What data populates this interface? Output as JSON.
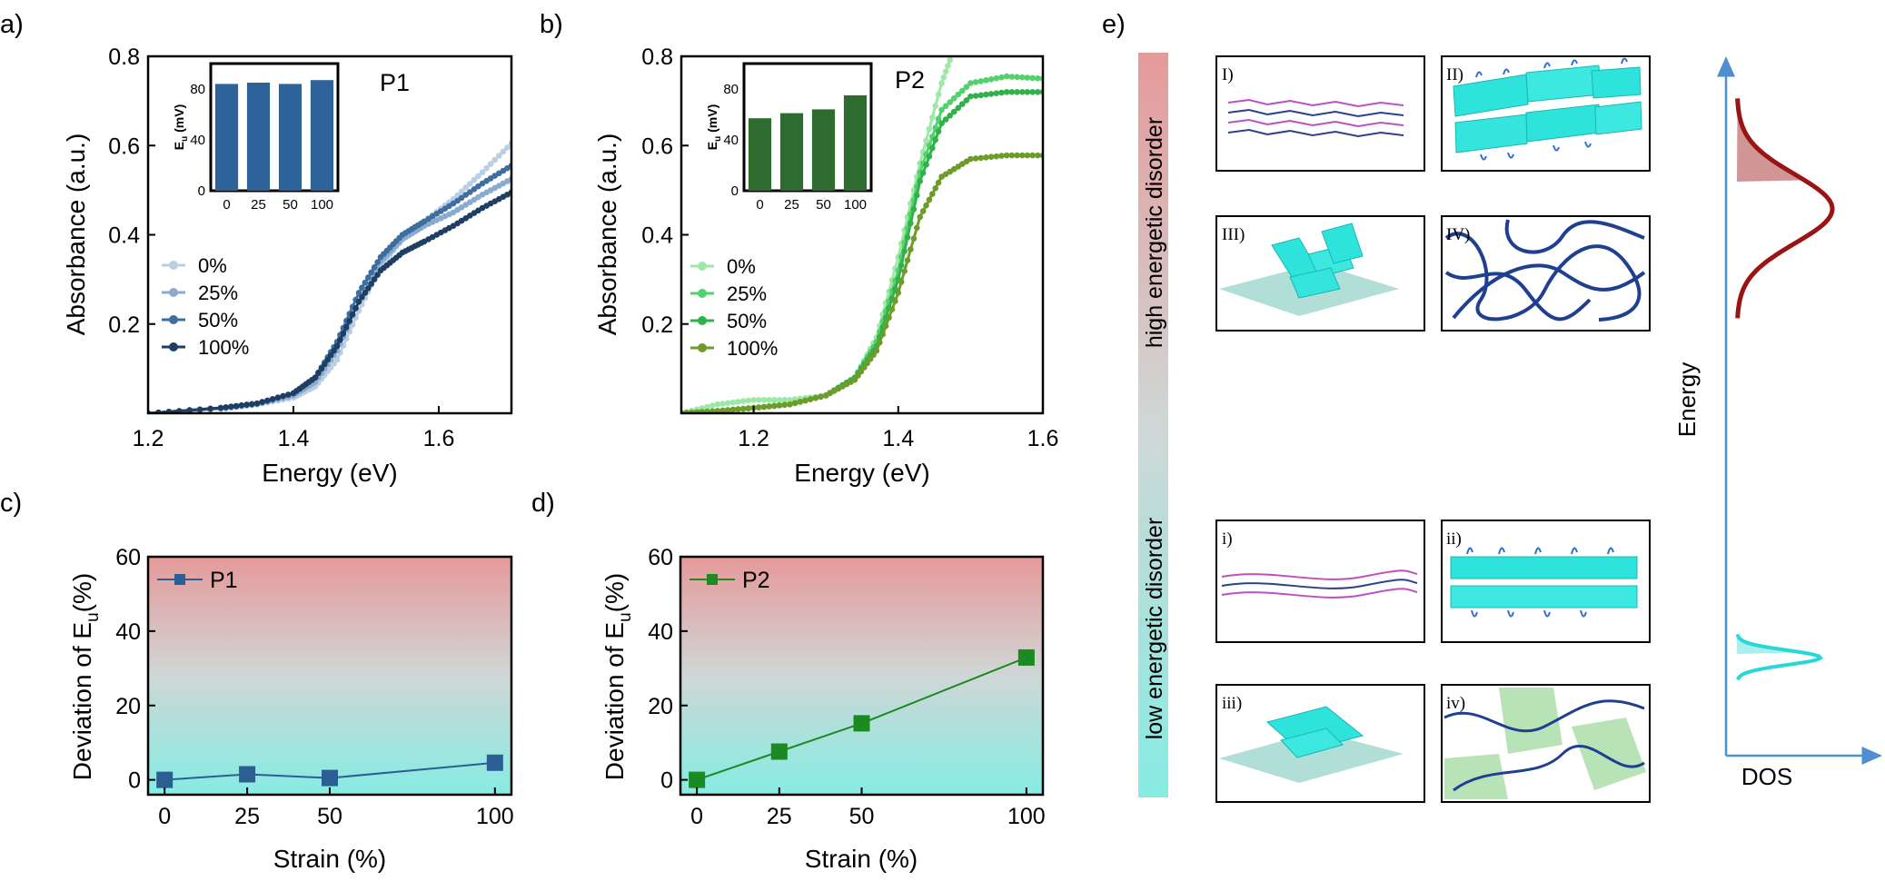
{
  "chart_data": [
    {
      "panel": "a)",
      "type": "line",
      "title": "P1",
      "xlabel": "Energy (eV)",
      "ylabel": "Absorbance (a.u.)",
      "xlim": [
        1.2,
        1.7
      ],
      "ylim": [
        0,
        0.8
      ],
      "xticks": [
        "1.2",
        "1.4",
        "1.6"
      ],
      "yticks": [
        "0.2",
        "0.4",
        "0.6",
        "0.8"
      ],
      "legend": {
        "position": "middle-left"
      },
      "series": [
        {
          "name": "0%",
          "color": "#b8cfe6",
          "x": [
            1.2,
            1.3,
            1.35,
            1.4,
            1.43,
            1.46,
            1.49,
            1.52,
            1.55,
            1.58,
            1.62,
            1.66,
            1.7
          ],
          "y": [
            0.0,
            0.01,
            0.02,
            0.035,
            0.06,
            0.12,
            0.23,
            0.33,
            0.39,
            0.43,
            0.48,
            0.54,
            0.605
          ]
        },
        {
          "name": "25%",
          "color": "#8aabcf",
          "x": [
            1.2,
            1.3,
            1.35,
            1.4,
            1.43,
            1.46,
            1.49,
            1.52,
            1.55,
            1.58,
            1.62,
            1.66,
            1.7
          ],
          "y": [
            0.0,
            0.01,
            0.02,
            0.04,
            0.07,
            0.14,
            0.25,
            0.34,
            0.39,
            0.42,
            0.45,
            0.49,
            0.525
          ]
        },
        {
          "name": "50%",
          "color": "#3d6e9f",
          "x": [
            1.2,
            1.3,
            1.35,
            1.4,
            1.43,
            1.46,
            1.49,
            1.52,
            1.55,
            1.58,
            1.62,
            1.66,
            1.7
          ],
          "y": [
            0.0,
            0.012,
            0.022,
            0.045,
            0.08,
            0.16,
            0.27,
            0.35,
            0.4,
            0.43,
            0.47,
            0.515,
            0.555
          ]
        },
        {
          "name": "100%",
          "color": "#1e3f63",
          "x": [
            1.2,
            1.3,
            1.35,
            1.4,
            1.43,
            1.46,
            1.49,
            1.52,
            1.55,
            1.58,
            1.62,
            1.66,
            1.7
          ],
          "y": [
            0.0,
            0.012,
            0.022,
            0.045,
            0.08,
            0.15,
            0.25,
            0.32,
            0.36,
            0.385,
            0.42,
            0.46,
            0.495
          ]
        }
      ],
      "inset": {
        "type": "bar",
        "ylabel": "E_u (mV)",
        "categories": [
          "0",
          "25",
          "50",
          "100"
        ],
        "values": [
          84,
          85,
          84,
          87
        ],
        "ylim": [
          0,
          100
        ],
        "yticks": [
          "0",
          "40",
          "80"
        ],
        "color": "#2e6399"
      }
    },
    {
      "panel": "b)",
      "type": "line",
      "title": "P2",
      "xlabel": "Energy (eV)",
      "ylabel": "Absorbance (a.u.)",
      "xlim": [
        1.1,
        1.6
      ],
      "ylim": [
        0,
        0.8
      ],
      "xticks": [
        "1.2",
        "1.4",
        "1.6"
      ],
      "yticks": [
        "0.2",
        "0.4",
        "0.6",
        "0.8"
      ],
      "legend": {
        "position": "middle-left"
      },
      "series": [
        {
          "name": "0%",
          "color": "#9ee8a7",
          "x": [
            1.1,
            1.15,
            1.2,
            1.25,
            1.3,
            1.34,
            1.37,
            1.4,
            1.43,
            1.46,
            1.48
          ],
          "y": [
            0.0,
            0.02,
            0.03,
            0.03,
            0.04,
            0.08,
            0.17,
            0.35,
            0.56,
            0.74,
            0.83
          ]
        },
        {
          "name": "25%",
          "color": "#55d16c",
          "x": [
            1.1,
            1.15,
            1.2,
            1.25,
            1.3,
            1.34,
            1.37,
            1.4,
            1.43,
            1.46,
            1.5,
            1.55,
            1.6
          ],
          "y": [
            0.0,
            0.005,
            0.012,
            0.02,
            0.04,
            0.08,
            0.16,
            0.32,
            0.54,
            0.68,
            0.74,
            0.755,
            0.75
          ]
        },
        {
          "name": "50%",
          "color": "#2fb24a",
          "x": [
            1.1,
            1.15,
            1.2,
            1.25,
            1.3,
            1.34,
            1.37,
            1.4,
            1.43,
            1.46,
            1.5,
            1.55,
            1.6
          ],
          "y": [
            0.0,
            0.005,
            0.012,
            0.02,
            0.04,
            0.08,
            0.15,
            0.3,
            0.52,
            0.65,
            0.71,
            0.72,
            0.72
          ]
        },
        {
          "name": "100%",
          "color": "#6e9c2a",
          "x": [
            1.1,
            1.15,
            1.2,
            1.25,
            1.3,
            1.34,
            1.37,
            1.4,
            1.43,
            1.46,
            1.5,
            1.55,
            1.6
          ],
          "y": [
            0.0,
            0.005,
            0.012,
            0.02,
            0.04,
            0.075,
            0.14,
            0.27,
            0.44,
            0.53,
            0.57,
            0.578,
            0.578
          ]
        }
      ],
      "inset": {
        "type": "bar",
        "ylabel": "E_u (mV)",
        "categories": [
          "0",
          "25",
          "50",
          "100"
        ],
        "values": [
          57,
          61,
          64,
          75
        ],
        "ylim": [
          0,
          100
        ],
        "yticks": [
          "0",
          "40",
          "80"
        ],
        "color": "#2e6b2f"
      }
    },
    {
      "panel": "c)",
      "type": "line",
      "xlabel": "Strain (%)",
      "ylabel": "Deviation of E",
      "ylabel_sub": "u",
      "ylabel_suffix": "(%)",
      "xlim": [
        -5,
        105
      ],
      "ylim": [
        -4,
        60
      ],
      "xticks": [
        "0",
        "25",
        "50",
        "100"
      ],
      "yticks": [
        "0",
        "20",
        "40",
        "60"
      ],
      "legend": {
        "position": "top-left"
      },
      "series": [
        {
          "name": "P1",
          "color": "#2b5f93",
          "x": [
            0,
            25,
            50,
            100
          ],
          "y": [
            0,
            1.5,
            0.5,
            4.6
          ]
        }
      ]
    },
    {
      "panel": "d)",
      "type": "line",
      "xlabel": "Strain (%)",
      "ylabel": "Deviation of E",
      "ylabel_sub": "u",
      "ylabel_suffix": "(%)",
      "xlim": [
        -5,
        105
      ],
      "ylim": [
        -4,
        60
      ],
      "xticks": [
        "0",
        "25",
        "50",
        "100"
      ],
      "yticks": [
        "0",
        "20",
        "40",
        "60"
      ],
      "legend": {
        "position": "top-left"
      },
      "series": [
        {
          "name": "P2",
          "color": "#1c8a22",
          "x": [
            0,
            25,
            50,
            100
          ],
          "y": [
            0,
            7.6,
            15.2,
            32.9
          ]
        }
      ]
    }
  ],
  "panel_e": {
    "label": "e)",
    "high_disorder": "high energetic disorder",
    "low_disorder": "low energetic disorder",
    "boxes": [
      "I)",
      "II)",
      "III)",
      "IV)",
      "i)",
      "ii)",
      "iii)",
      "iv)"
    ],
    "energy_label": "Energy",
    "dos_label": "DOS",
    "colors": {
      "high": "#e79494",
      "low": "#87ebe2",
      "broad_dos": "#9b1414",
      "narrow_dos": "#2ad7d7",
      "axis": "#4d8fd0"
    }
  }
}
